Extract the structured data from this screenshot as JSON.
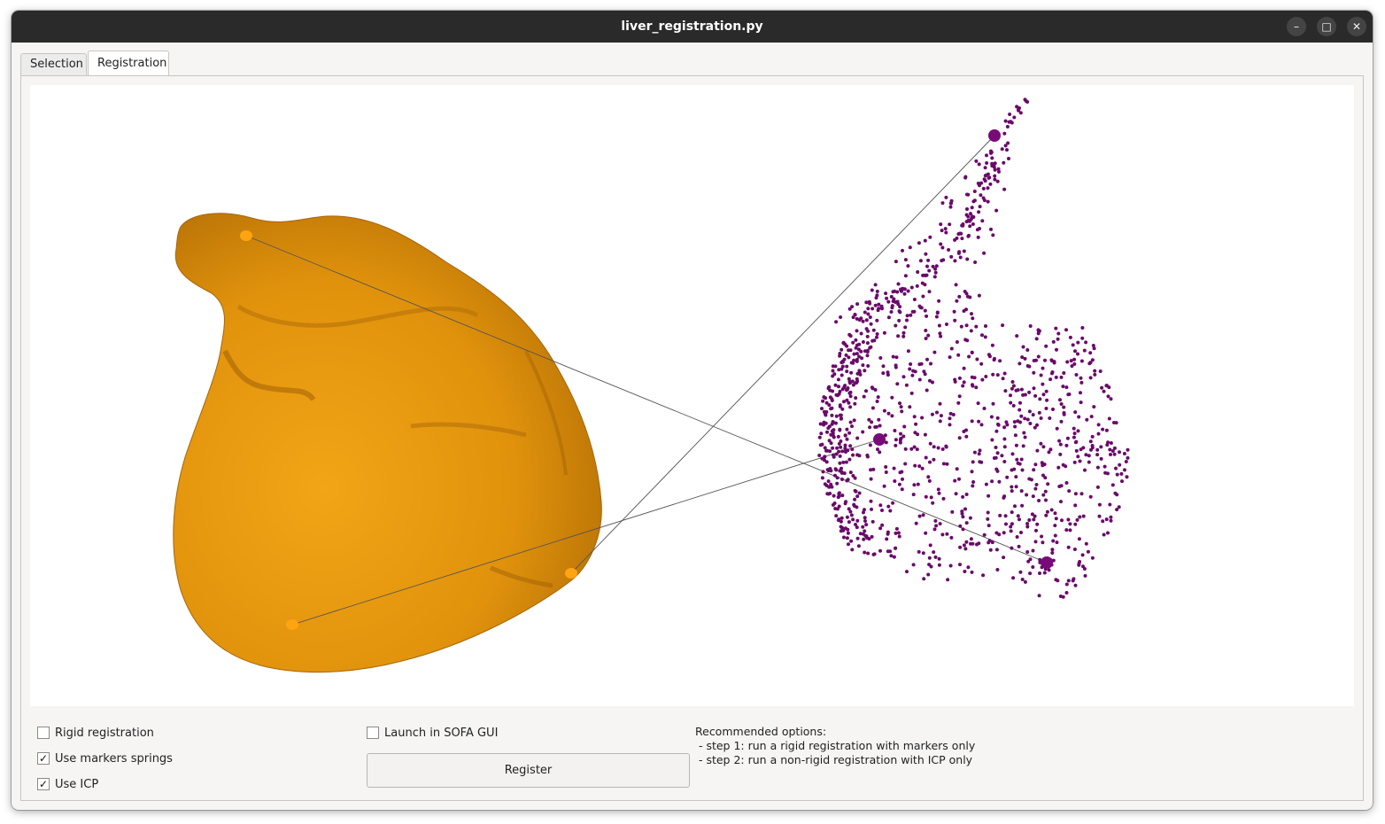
{
  "window": {
    "title": "liver_registration.py",
    "controls": {
      "minimize": "–",
      "maximize": "□",
      "close": "✕"
    }
  },
  "tabs": [
    {
      "label": "Selection",
      "active": false
    },
    {
      "label": "Registration",
      "active": true
    }
  ],
  "viewer": {
    "liver_color": "#f0a010",
    "point_cloud_color": "#6a0a6a",
    "link_color": "#555555"
  },
  "options": {
    "rigid_registration": {
      "label": "Rigid registration",
      "checked": false
    },
    "use_markers_springs": {
      "label": "Use markers springs",
      "checked": true
    },
    "use_icp": {
      "label": "Use ICP",
      "checked": true
    },
    "launch_sofa_gui": {
      "label": "Launch in SOFA GUI",
      "checked": false
    }
  },
  "register_button": "Register",
  "recommended": {
    "heading": "Recommended options:",
    "step1": " - step 1: run a rigid registration with markers only",
    "step2": " - step 2: run a non-rigid registration with ICP only"
  }
}
